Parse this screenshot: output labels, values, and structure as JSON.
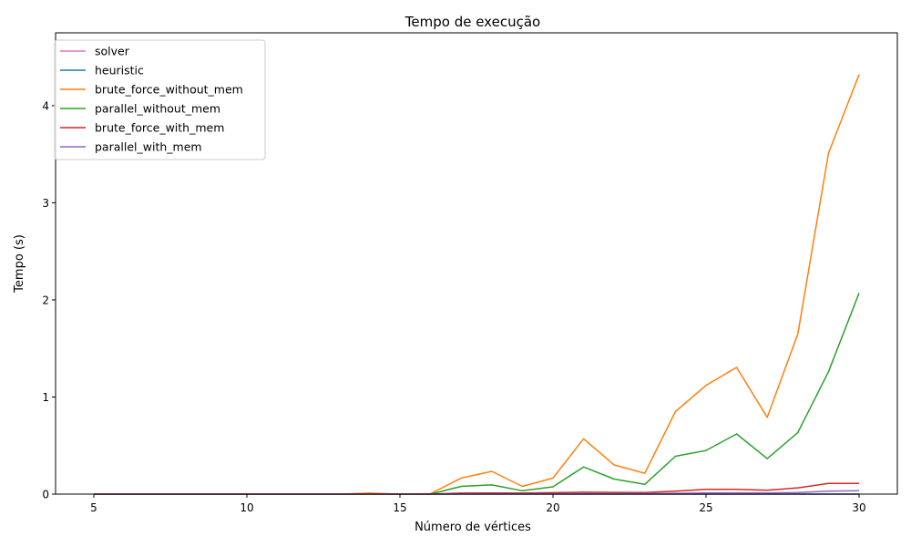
{
  "chart_data": {
    "type": "line",
    "title": "Tempo de execução",
    "xlabel": "Número de vértices",
    "ylabel": "Tempo (s)",
    "xlim": [
      3.75,
      31.25
    ],
    "ylim": [
      0,
      4.75
    ],
    "xticks": [
      5,
      10,
      15,
      20,
      25,
      30
    ],
    "yticks": [
      0,
      1,
      2,
      3,
      4
    ],
    "grid": false,
    "legend_position": "top-left",
    "x": [
      5,
      6,
      7,
      8,
      9,
      10,
      11,
      12,
      13,
      14,
      15,
      16,
      17,
      18,
      19,
      20,
      21,
      22,
      23,
      24,
      25,
      26,
      27,
      28,
      29,
      30
    ],
    "series": [
      {
        "name": "solver",
        "color": "#e377c2",
        "values": [
          0,
          0,
          0,
          0,
          0,
          0,
          0,
          0,
          0,
          0,
          0,
          0,
          0,
          0,
          0,
          0,
          0,
          0,
          0,
          0,
          0,
          0,
          0,
          0,
          0,
          0
        ]
      },
      {
        "name": "heuristic",
        "color": "#1f77b4",
        "values": [
          0,
          0,
          0,
          0,
          0,
          0,
          0,
          0,
          0,
          0,
          0,
          0,
          0,
          0,
          0,
          0,
          0,
          0,
          0,
          0,
          0,
          0,
          0,
          0,
          0,
          0
        ]
      },
      {
        "name": "brute_force_without_mem",
        "color": "#ff7f0e",
        "values": [
          0,
          0,
          0,
          0,
          0,
          0,
          0,
          0,
          0,
          0.01,
          0,
          0.005,
          0.165,
          0.235,
          0.08,
          0.165,
          0.57,
          0.3,
          0.215,
          0.85,
          1.12,
          1.305,
          0.79,
          1.65,
          3.51,
          4.32
        ]
      },
      {
        "name": "parallel_without_mem",
        "color": "#2ca02c",
        "values": [
          0,
          0,
          0,
          0,
          0,
          0,
          0,
          0,
          0,
          0,
          0,
          0,
          0.08,
          0.095,
          0.035,
          0.075,
          0.28,
          0.155,
          0.1,
          0.39,
          0.45,
          0.62,
          0.365,
          0.635,
          1.26,
          2.07
        ]
      },
      {
        "name": "brute_force_with_mem",
        "color": "#d62728",
        "values": [
          0,
          0,
          0,
          0,
          0,
          0,
          0,
          0,
          0,
          0,
          0,
          0,
          0.01,
          0.012,
          0.01,
          0.015,
          0.02,
          0.018,
          0.017,
          0.03,
          0.05,
          0.05,
          0.04,
          0.065,
          0.11,
          0.11
        ]
      },
      {
        "name": "parallel_with_mem",
        "color": "#9467bd",
        "values": [
          0,
          0,
          0,
          0,
          0,
          0,
          0,
          0,
          0,
          0,
          0,
          0,
          0.003,
          0.004,
          0.003,
          0.004,
          0.005,
          0.005,
          0.005,
          0.008,
          0.012,
          0.013,
          0.012,
          0.017,
          0.03,
          0.035
        ]
      }
    ]
  }
}
